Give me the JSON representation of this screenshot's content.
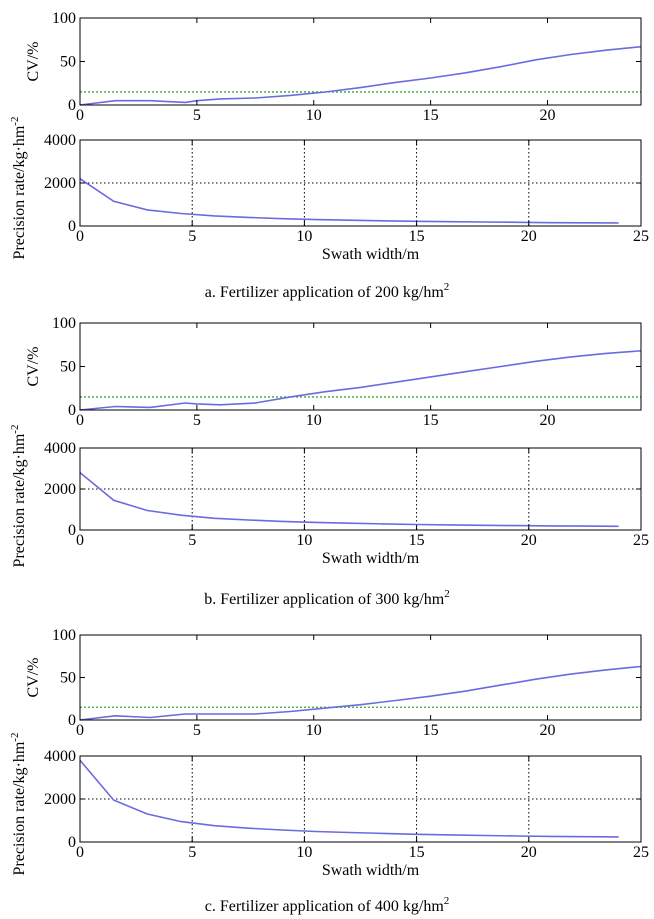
{
  "colors": {
    "line": "#6b6be0",
    "threshold": "#33aa33",
    "axis": "#000000",
    "grid": "#000000"
  },
  "chart_data": [
    {
      "type": "line",
      "caption": "a. Fertilizer application of 200 kg/hm",
      "caption_sup": "2",
      "cv_panel": {
        "ylabel": "CV/%",
        "xlim": [
          0,
          24
        ],
        "ylim": [
          0,
          100
        ],
        "xticks": [
          0,
          5,
          10,
          15,
          20
        ],
        "yticks": [
          0,
          50,
          100
        ],
        "threshold": 15,
        "x": [
          0,
          1.5,
          3,
          4.5,
          5,
          6,
          7.5,
          9,
          10.5,
          12,
          13.5,
          15,
          16.5,
          18,
          19.5,
          21,
          22.5,
          24
        ],
        "y": [
          0,
          5,
          5,
          3,
          5,
          7,
          8,
          11,
          15,
          20,
          26,
          31,
          37,
          44,
          52,
          58,
          63,
          67
        ]
      },
      "rate_panel": {
        "ylabel": "Precision rate/kg·hm",
        "ylabel_sup": "-2",
        "xlabel": "Swath width/m",
        "xlim": [
          0,
          25
        ],
        "ylim": [
          0,
          4000
        ],
        "xticks": [
          0,
          5,
          10,
          15,
          20,
          25
        ],
        "yticks": [
          0,
          2000,
          4000
        ],
        "vgrid": [
          5,
          10,
          15,
          20
        ],
        "hgrid": [
          2000
        ],
        "x": [
          0,
          1.5,
          3,
          4.5,
          6,
          7.5,
          9,
          10.5,
          12,
          13.5,
          15,
          16.5,
          18,
          19.5,
          21,
          22.5,
          24
        ],
        "y": [
          2200,
          1150,
          750,
          580,
          470,
          400,
          340,
          300,
          270,
          240,
          220,
          200,
          185,
          170,
          155,
          150,
          145
        ]
      }
    },
    {
      "type": "line",
      "caption": "b. Fertilizer application of 300 kg/hm",
      "caption_sup": "2",
      "cv_panel": {
        "ylabel": "CV/%",
        "xlim": [
          0,
          24
        ],
        "ylim": [
          0,
          100
        ],
        "xticks": [
          0,
          5,
          10,
          15,
          20
        ],
        "yticks": [
          0,
          50,
          100
        ],
        "threshold": 15,
        "x": [
          0,
          1.5,
          3,
          4.5,
          5,
          6,
          7.5,
          9,
          10.5,
          12,
          13.5,
          15,
          16.5,
          18,
          19.5,
          21,
          22.5,
          24
        ],
        "y": [
          0,
          4,
          3,
          8,
          7,
          6,
          8,
          15,
          21,
          26,
          32,
          38,
          44,
          50,
          56,
          61,
          65,
          68
        ]
      },
      "rate_panel": {
        "ylabel": "Precision rate/kg·hm",
        "ylabel_sup": "-2",
        "xlabel": "Swath width/m",
        "xlim": [
          0,
          25
        ],
        "ylim": [
          0,
          4000
        ],
        "xticks": [
          0,
          5,
          10,
          15,
          20,
          25
        ],
        "yticks": [
          0,
          2000,
          4000
        ],
        "vgrid": [
          5,
          10,
          15,
          20
        ],
        "hgrid": [
          2000
        ],
        "x": [
          0,
          1.5,
          3,
          4.5,
          6,
          7.5,
          9,
          10.5,
          12,
          13.5,
          15,
          16.5,
          18,
          19.5,
          21,
          22.5,
          24
        ],
        "y": [
          2800,
          1450,
          950,
          720,
          570,
          490,
          420,
          370,
          330,
          300,
          270,
          250,
          230,
          215,
          200,
          190,
          180
        ]
      }
    },
    {
      "type": "line",
      "caption": "c. Fertilizer application of 400 kg/hm",
      "caption_sup": "2",
      "cv_panel": {
        "ylabel": "CV/%",
        "xlim": [
          0,
          24
        ],
        "ylim": [
          0,
          100
        ],
        "xticks": [
          0,
          5,
          10,
          15,
          20
        ],
        "yticks": [
          0,
          50,
          100
        ],
        "threshold": 15,
        "x": [
          0,
          1.5,
          3,
          4.5,
          5,
          6,
          7.5,
          9,
          10.5,
          12,
          13.5,
          15,
          16.5,
          18,
          19.5,
          21,
          22.5,
          24
        ],
        "y": [
          0,
          5,
          3,
          7,
          7,
          7,
          7,
          10,
          14,
          18,
          23,
          28,
          34,
          41,
          48,
          54,
          59,
          63
        ]
      },
      "rate_panel": {
        "ylabel": "Precision rate/kg·hm",
        "ylabel_sup": "-2",
        "xlabel": "Swath width/m",
        "xlim": [
          0,
          25
        ],
        "ylim": [
          0,
          4000
        ],
        "xticks": [
          0,
          5,
          10,
          15,
          20,
          25
        ],
        "yticks": [
          0,
          2000,
          4000
        ],
        "vgrid": [
          5,
          10,
          15,
          20
        ],
        "hgrid": [
          2000
        ],
        "x": [
          0,
          1.5,
          3,
          4.5,
          6,
          7.5,
          9,
          10.5,
          12,
          13.5,
          15,
          16.5,
          18,
          19.5,
          21,
          22.5,
          24
        ],
        "y": [
          3800,
          1950,
          1300,
          950,
          760,
          640,
          560,
          490,
          440,
          400,
          360,
          330,
          300,
          280,
          260,
          245,
          235
        ]
      }
    }
  ]
}
